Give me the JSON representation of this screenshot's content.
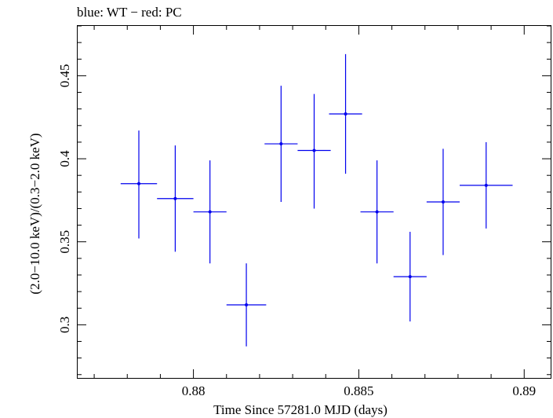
{
  "header": {
    "title": "blue: WT − red: PC"
  },
  "chart_data": {
    "type": "scatter",
    "title": "blue: WT − red: PC",
    "xlabel": "Time Since 57281.0 MJD (days)",
    "ylabel": "(2.0−10.0 keV)/(0.3−2.0 keV)",
    "xlim": [
      0.8765,
      0.8908
    ],
    "ylim": [
      0.268,
      0.48
    ],
    "x_ticks": [
      0.88,
      0.885,
      0.89
    ],
    "x_tick_labels": [
      "0.88",
      "0.885",
      "0.89"
    ],
    "y_ticks": [
      0.3,
      0.35,
      0.4,
      0.45
    ],
    "y_tick_labels": [
      "0.3",
      "0.35",
      "0.4",
      "0.45"
    ],
    "grid": false,
    "legend": "none",
    "colors": {
      "wt": "#0000ee",
      "axes": "#000000"
    },
    "series": [
      {
        "points": [
          {
            "x": 0.87835,
            "y": 0.385,
            "xerr_lo": 0.00055,
            "xerr_hi": 0.00055,
            "yerr_lo": 0.033,
            "yerr_hi": 0.032
          },
          {
            "x": 0.87945,
            "y": 0.376,
            "xerr_lo": 0.00055,
            "xerr_hi": 0.00055,
            "yerr_lo": 0.032,
            "yerr_hi": 0.032
          },
          {
            "x": 0.8805,
            "y": 0.368,
            "xerr_lo": 0.0005,
            "xerr_hi": 0.0005,
            "yerr_lo": 0.031,
            "yerr_hi": 0.031
          },
          {
            "x": 0.8816,
            "y": 0.312,
            "xerr_lo": 0.0006,
            "xerr_hi": 0.0006,
            "yerr_lo": 0.025,
            "yerr_hi": 0.025
          },
          {
            "x": 0.88265,
            "y": 0.409,
            "xerr_lo": 0.0005,
            "xerr_hi": 0.0005,
            "yerr_lo": 0.035,
            "yerr_hi": 0.035
          },
          {
            "x": 0.88365,
            "y": 0.405,
            "xerr_lo": 0.0005,
            "xerr_hi": 0.0005,
            "yerr_lo": 0.035,
            "yerr_hi": 0.034
          },
          {
            "x": 0.8846,
            "y": 0.427,
            "xerr_lo": 0.0005,
            "xerr_hi": 0.0005,
            "yerr_lo": 0.036,
            "yerr_hi": 0.036
          },
          {
            "x": 0.88555,
            "y": 0.368,
            "xerr_lo": 0.0005,
            "xerr_hi": 0.0005,
            "yerr_lo": 0.031,
            "yerr_hi": 0.031
          },
          {
            "x": 0.88655,
            "y": 0.329,
            "xerr_lo": 0.0005,
            "xerr_hi": 0.0005,
            "yerr_lo": 0.027,
            "yerr_hi": 0.027
          },
          {
            "x": 0.88755,
            "y": 0.374,
            "xerr_lo": 0.0005,
            "xerr_hi": 0.0005,
            "yerr_lo": 0.032,
            "yerr_hi": 0.032
          },
          {
            "x": 0.88885,
            "y": 0.384,
            "xerr_lo": 0.0008,
            "xerr_hi": 0.0008,
            "yerr_lo": 0.026,
            "yerr_hi": 0.026
          }
        ]
      }
    ]
  }
}
